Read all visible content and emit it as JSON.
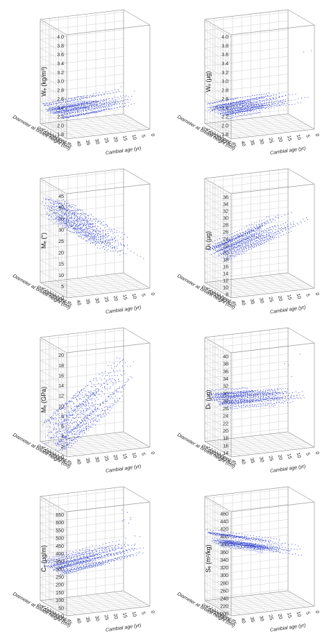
{
  "chart_data": [
    {
      "type": "scatter",
      "zlabel": "Wₑ (kg/m³)",
      "zticks": [
        "1.8",
        "2.0",
        "2.2",
        "2.4",
        "2.6",
        "2.8",
        "3.0",
        "3.2",
        "3.4",
        "3.6",
        "3.8",
        "4.0"
      ],
      "zlim": [
        1.7,
        4.05
      ],
      "base": 2.3,
      "trend": -0.003,
      "spread": 0.1,
      "rise": 1.4,
      "xlabel": "Cambial age (yr)",
      "xticks": [
        "0",
        "5",
        "10",
        "15",
        "20",
        "25",
        "30",
        "35",
        "40",
        "45"
      ],
      "ylabel": "Diameter at breast height (cm)",
      "yticks": [
        "0",
        "5",
        "10",
        "15",
        "20",
        "25",
        "30",
        "35",
        "40",
        "45",
        "50"
      ]
    },
    {
      "type": "scatter",
      "zlabel": "Wᵥ (µg)",
      "zticks": [
        "1.8",
        "2.0",
        "2.2",
        "2.4",
        "2.6",
        "2.8",
        "3.0",
        "3.2",
        "3.4",
        "3.6",
        "3.8",
        "4.0"
      ],
      "zlim": [
        1.7,
        4.05
      ],
      "base": 2.3,
      "trend": -0.003,
      "spread": 0.1,
      "rise": 1.4,
      "xlabel": "Cambial age (yr)",
      "xticks": [
        "0",
        "5",
        "10",
        "15",
        "20",
        "25",
        "30",
        "35",
        "40",
        "45"
      ],
      "ylabel": "Diameter at breast height (cm)",
      "yticks": [
        "0",
        "5",
        "10",
        "15",
        "20",
        "25",
        "30",
        "35",
        "40",
        "45",
        "50"
      ]
    },
    {
      "type": "scatter",
      "zlabel": "Mₑ (°)",
      "zticks": [
        "0",
        "5",
        "10",
        "15",
        "20",
        "25",
        "30",
        "35",
        "40",
        "45"
      ],
      "zlim": [
        0,
        46
      ],
      "base": 10,
      "trend": 0.55,
      "spread": 6,
      "rise": 0,
      "xlabel": "Cambial age (yr)",
      "xticks": [
        "0",
        "5",
        "10",
        "15",
        "20",
        "25",
        "30",
        "35",
        "40",
        "45"
      ],
      "ylabel": "Diameter at breast height (cm)",
      "yticks": [
        "0",
        "5",
        "10",
        "15",
        "20",
        "25",
        "30",
        "35",
        "40",
        "45",
        "50"
      ]
    },
    {
      "type": "scatter",
      "zlabel": "Dᵣ (µg)",
      "zticks": [
        "8",
        "10",
        "12",
        "14",
        "16",
        "18",
        "20",
        "22",
        "24",
        "26",
        "28",
        "30",
        "32",
        "34",
        "36"
      ],
      "zlim": [
        7,
        37
      ],
      "base": 26,
      "trend": -0.18,
      "spread": 1.5,
      "rise": 0,
      "xlabel": "Cambial age (yr)",
      "xticks": [
        "0",
        "5",
        "10",
        "15",
        "20",
        "25",
        "30",
        "35",
        "40",
        "45"
      ],
      "ylabel": "Diameter at breast height (cm)",
      "yticks": [
        "0",
        "5",
        "10",
        "15",
        "20",
        "25",
        "30",
        "35",
        "40",
        "45",
        "50"
      ]
    },
    {
      "type": "scatter",
      "zlabel": "Mₑ (GPa)",
      "zticks": [
        "0",
        "2",
        "4",
        "6",
        "8",
        "10",
        "12",
        "14",
        "16",
        "18",
        "20"
      ],
      "zlim": [
        0,
        20.5
      ],
      "base": 15,
      "trend": -0.28,
      "spread": 3,
      "rise": 0,
      "xlabel": "Cambial age (yr)",
      "xticks": [
        "0",
        "5",
        "10",
        "15",
        "20",
        "25",
        "30",
        "35",
        "40",
        "45"
      ],
      "ylabel": "Diameter at breast height (cm)",
      "yticks": [
        "0",
        "5",
        "10",
        "15",
        "20",
        "25",
        "30",
        "35",
        "40",
        "45",
        "50"
      ]
    },
    {
      "type": "scatter",
      "zlabel": "Dₜ (µg)",
      "zticks": [
        "14",
        "16",
        "18",
        "20",
        "22",
        "24",
        "26",
        "28",
        "30",
        "32",
        "34",
        "36",
        "38",
        "40"
      ],
      "zlim": [
        13,
        41
      ],
      "base": 25.5,
      "trend": 0.02,
      "spread": 1.4,
      "rise": 12,
      "xlabel": "Cambial age (yr)",
      "xticks": [
        "0",
        "5",
        "10",
        "15",
        "20",
        "25",
        "30",
        "35",
        "40",
        "45"
      ],
      "ylabel": "Diameter at breast height (cm)",
      "yticks": [
        "0",
        "5",
        "10",
        "15",
        "20",
        "25",
        "30",
        "35",
        "40",
        "45",
        "50"
      ]
    },
    {
      "type": "scatter",
      "zlabel": "Cₑ (µg/m)",
      "zticks": [
        "0",
        "50",
        "100",
        "150",
        "200",
        "250",
        "300",
        "350",
        "400",
        "450",
        "500",
        "550",
        "600",
        "650"
      ],
      "zlim": [
        0,
        670
      ],
      "base": 330,
      "trend": -1.5,
      "spread": 30,
      "rise": 280,
      "xlabel": "Cambial age (yr)",
      "xticks": [
        "0",
        "5",
        "10",
        "15",
        "20",
        "25",
        "30",
        "35",
        "40",
        "45"
      ],
      "ylabel": "Diameter at breast height (cm)",
      "yticks": [
        "0",
        "5",
        "10",
        "15",
        "20",
        "25",
        "30",
        "35",
        "40",
        "45",
        "50"
      ]
    },
    {
      "type": "scatter",
      "zlabel": "Sₑ (m²/kg)",
      "zticks": [
        "200",
        "220",
        "240",
        "260",
        "280",
        "300",
        "320",
        "340",
        "360",
        "380",
        "400",
        "420",
        "440",
        "460"
      ],
      "zlim": [
        195,
        465
      ],
      "base": 320,
      "trend": 1.2,
      "spread": 14,
      "rise": 0,
      "xlabel": "Cambial age (yr)",
      "xticks": [
        "0",
        "5",
        "10",
        "15",
        "20",
        "25",
        "30",
        "35",
        "40",
        "45"
      ],
      "ylabel": "Diameter at breast height (cm)",
      "yticks": [
        "0",
        "5",
        "10",
        "15",
        "20",
        "25",
        "30",
        "35",
        "40",
        "45",
        "50"
      ]
    }
  ],
  "colors": {
    "points": "#3344cc",
    "grid": "#d6d6d6",
    "text": "#222222"
  }
}
